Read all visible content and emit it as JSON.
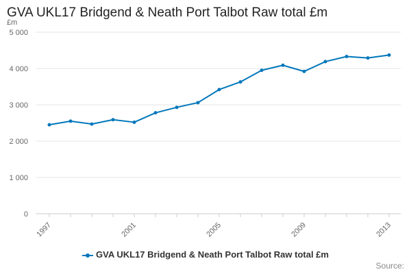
{
  "chart_data": {
    "type": "line",
    "title": "GVA UKL17 Bridgend & Neath Port Talbot Raw total £m",
    "ylabel": "£m",
    "xlabel": "",
    "ylim": [
      0,
      5000
    ],
    "y_ticks": [
      "0",
      "1 000",
      "2 000",
      "3 000",
      "4 000",
      "5 000"
    ],
    "y_tick_values": [
      0,
      1000,
      2000,
      3000,
      4000,
      5000
    ],
    "x_tick_labels": [
      "1997",
      "2001",
      "2005",
      "2009",
      "2013"
    ],
    "grid": true,
    "legend_position": "bottom",
    "series": [
      {
        "name": "GVA UKL17 Bridgend & Neath Port Talbot Raw total £m",
        "color": "#0077bb",
        "x": [
          1997,
          1998,
          1999,
          2000,
          2001,
          2002,
          2003,
          2004,
          2005,
          2006,
          2007,
          2008,
          2009,
          2010,
          2011,
          2012,
          2013
        ],
        "values": [
          2450,
          2550,
          2470,
          2590,
          2520,
          2780,
          2930,
          3060,
          3420,
          3630,
          3950,
          4090,
          3920,
          4190,
          4330,
          4290,
          4370
        ]
      }
    ]
  },
  "credits": "Source:"
}
